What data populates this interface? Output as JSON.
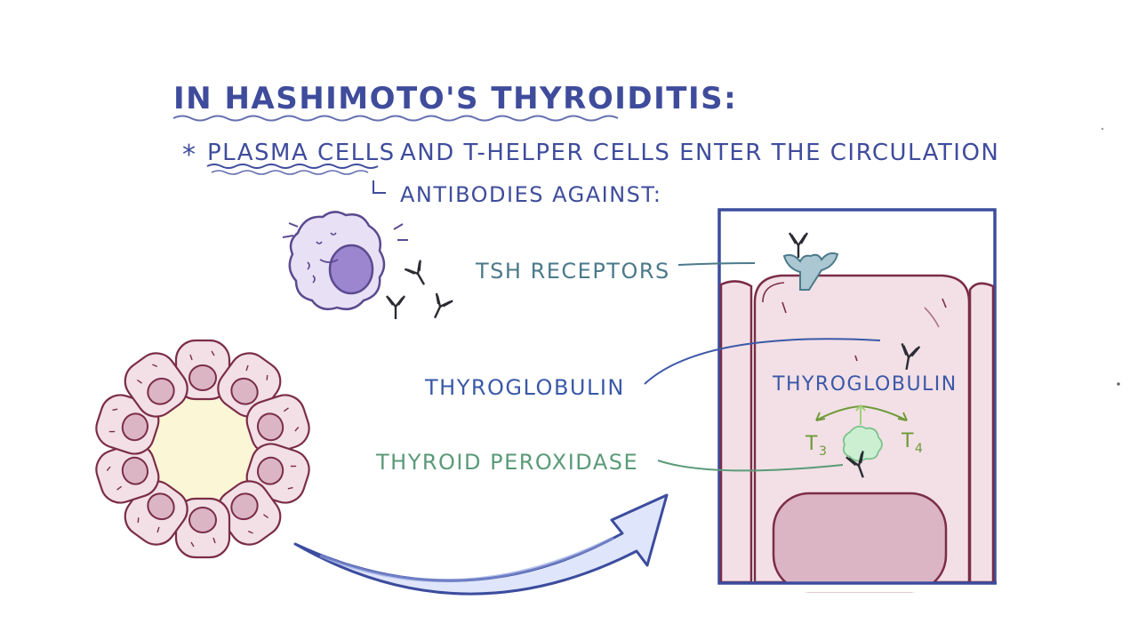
{
  "heading": {
    "title": "IN HASHIMOTO'S THYROIDITIS:",
    "bullet_star": "*",
    "line_highlight": "PLASMA CELLS",
    "line_rest": "AND T-HELPER CELLS ENTER THE CIRCULATION",
    "sub_line": "ANTIBODIES AGAINST:"
  },
  "targets": {
    "tsh": "TSH RECEPTORS",
    "thyroglobulin": "THYROGLOBULIN",
    "peroxidase": "THYROID PEROXIDASE"
  },
  "cell_detail": {
    "thyroglobulin": "THYROGLOBULIN",
    "t3": "T",
    "t3_sub": "3",
    "t4": "T",
    "t4_sub": "4"
  },
  "colors": {
    "title_blue": "#3f4c9c",
    "tsh_teal": "#4b7a8a",
    "thyroglobulin_blue": "#3b58a8",
    "peroxidase_green": "#5a9a78",
    "hormone_green": "#6e9a3a",
    "cell_pink": "#f2e0e6",
    "cell_outline": "#7b2d48",
    "nucleus": "#dcb5c4",
    "plasma_cell": "#e8e0f5",
    "plasma_nucleus": "#9b86cf",
    "colloid": "#fbf6d6",
    "frame_blue": "#3c4c9e",
    "arrow_fill": "#dfe6fb"
  }
}
